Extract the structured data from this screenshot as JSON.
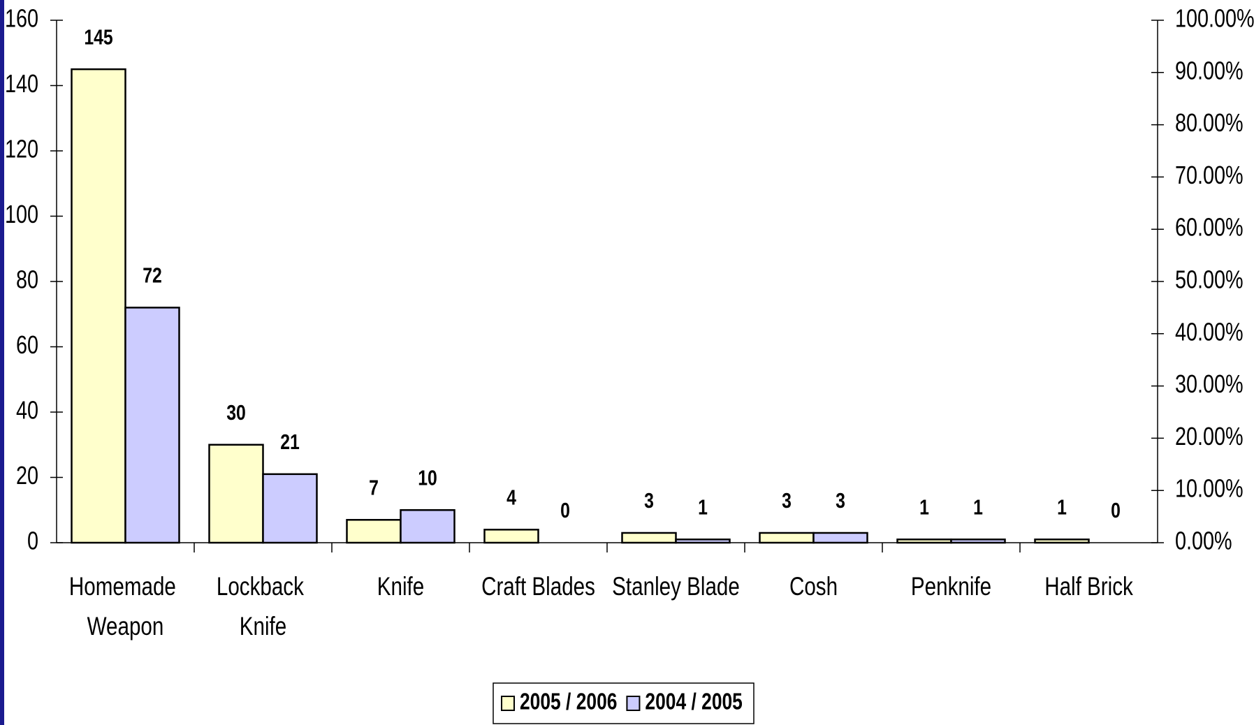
{
  "chart_data": {
    "type": "bar",
    "categories": [
      "Homemade Weapon",
      "Lockback Knife",
      "Knife",
      "Craft Blades",
      "Stanley Blade",
      "Cosh",
      "Penknife",
      "Half Brick"
    ],
    "series": [
      {
        "name": "2005 / 2006",
        "color": "#ffffcc",
        "values": [
          145,
          30,
          7,
          4,
          3,
          3,
          1,
          1
        ]
      },
      {
        "name": "2004 / 2005",
        "color": "#ccccff",
        "values": [
          72,
          21,
          10,
          0,
          1,
          3,
          1,
          0
        ]
      }
    ],
    "ylim": [
      0,
      160
    ],
    "yticks": [
      0,
      20,
      40,
      60,
      80,
      100,
      120,
      140,
      160
    ],
    "y2lim": [
      0,
      100
    ],
    "y2ticks": [
      {
        "value": 0,
        "label": "0.00%"
      },
      {
        "value": 10,
        "label": "10.00%"
      },
      {
        "value": 20,
        "label": "20.00%"
      },
      {
        "value": 30,
        "label": "30.00%"
      },
      {
        "value": 40,
        "label": "40.00%"
      },
      {
        "value": 50,
        "label": "50.00%"
      },
      {
        "value": 60,
        "label": "60.00%"
      },
      {
        "value": 70,
        "label": "70.00%"
      },
      {
        "value": 80,
        "label": "80.00%"
      },
      {
        "value": 90,
        "label": "90.00%"
      },
      {
        "value": 100,
        "label": "100.00%"
      }
    ],
    "legend": "bottom"
  }
}
